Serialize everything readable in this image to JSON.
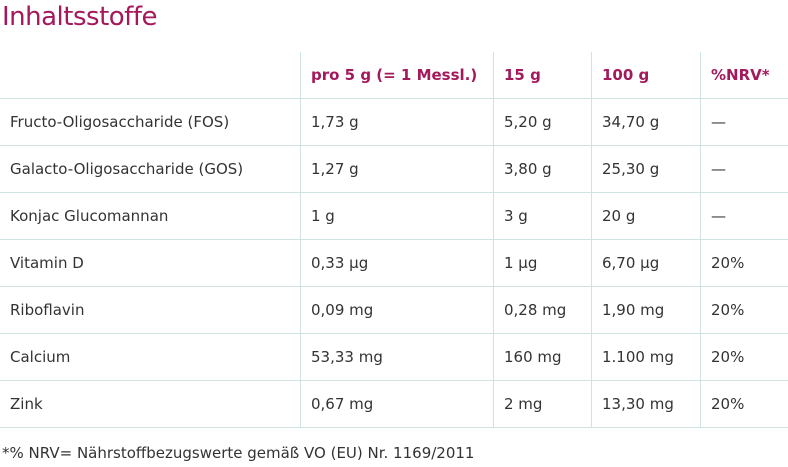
{
  "title": "Inhaltsstoffe",
  "table": {
    "header": [
      "pro 5 g (= 1 Messl.)",
      "15 g",
      "100 g",
      "%NRV*"
    ],
    "rows": [
      [
        "Fructo-Oligosaccharide (FOS)",
        "1,73 g",
        "5,20 g",
        "34,70 g",
        "—"
      ],
      [
        "Galacto-Oligosaccharide (GOS)",
        "1,27 g",
        "3,80 g",
        "25,30 g",
        "—"
      ],
      [
        "Konjac Glucomannan",
        "1 g",
        "3 g",
        "20 g",
        "—"
      ],
      [
        "Vitamin D",
        "0,33 µg",
        "1 µg",
        "6,70 µg",
        "20%"
      ],
      [
        "Riboflavin",
        "0,09 mg",
        "0,28 mg",
        "1,90 mg",
        "20%"
      ],
      [
        "Calcium",
        "53,33 mg",
        "160 mg",
        "1.100 mg",
        "20%"
      ],
      [
        "Zink",
        "0,67 mg",
        "2 mg",
        "13,30 mg",
        "20%"
      ]
    ]
  },
  "footnote": "*% NRV= Nährstoffbezugswerte gemäß VO (EU) Nr. 1169/2011"
}
